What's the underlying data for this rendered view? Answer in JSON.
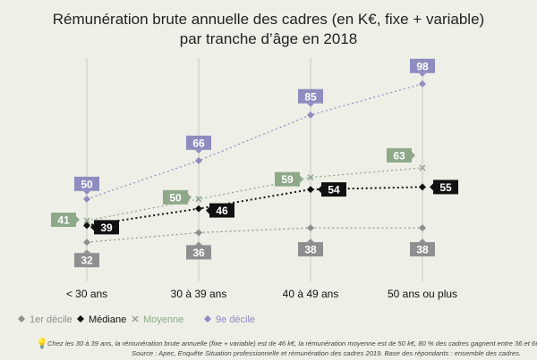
{
  "chart_data": {
    "type": "line",
    "title": [
      "Rémunération brute annuelle des cadres (en K€, fixe + variable)",
      "par tranche d’âge en 2018"
    ],
    "categories": [
      "< 30 ans",
      "30 à 39 ans",
      "40 à 49 ans",
      "50 ans ou plus"
    ],
    "ylim": [
      25,
      105
    ],
    "series": [
      {
        "name": "1er décile",
        "values": [
          32,
          36,
          38,
          38
        ],
        "color": "#8f8f8f",
        "marker": "diamond"
      },
      {
        "name": "Médiane",
        "values": [
          39,
          46,
          54,
          55
        ],
        "color": "#111111",
        "marker": "diamond"
      },
      {
        "name": "Moyenne",
        "values": [
          41,
          50,
          59,
          63
        ],
        "color": "#8fa88a",
        "marker": "x"
      },
      {
        "name": "9e décile",
        "values": [
          50,
          66,
          85,
          98
        ],
        "color": "#8f8cc0",
        "marker": "diamond"
      }
    ],
    "legend": [
      "1er décile",
      "Médiane",
      "Moyenne",
      "9e décile"
    ],
    "legend_position": "bottom-left",
    "grid": "vertical"
  },
  "footnote": {
    "line1": "Chez les 30 à 39 ans, la rémunération brute annuelle (fixe + variable) est de 46 k€, la rémunération moyenne est de 50 k€, 80 % des cadres gagnent entre 36 et 66 k€",
    "line2": "Source : Apec, Enquête Situation professionnelle et rémunération des cadres 2019. Base des répondants : ensemble des cadres."
  }
}
